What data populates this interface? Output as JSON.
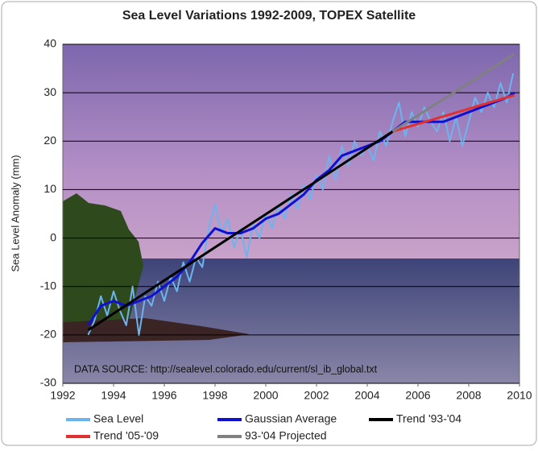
{
  "chart_data": {
    "type": "line",
    "title": "Sea Level Variations 1992-2009, TOPEX Satellite",
    "y_label": "Sea Level Anomaly (mm)",
    "annotation": "DATA SOURCE: http://sealevel.colorado.edu/current/sl_ib_global.txt",
    "xlim": [
      1992,
      2010
    ],
    "xticks": [
      1992,
      1994,
      1996,
      1998,
      2000,
      2002,
      2004,
      2006,
      2008,
      2010
    ],
    "ylim": [
      -30,
      40
    ],
    "yticks": [
      -30,
      -20,
      -10,
      0,
      10,
      20,
      30,
      40
    ],
    "grid": true,
    "legend": "bottom",
    "series": [
      {
        "name": "Sea Level",
        "color": "#6cb4f0",
        "width": 2,
        "x": [
          1993.0,
          1993.25,
          1993.5,
          1993.75,
          1994.0,
          1994.25,
          1994.5,
          1994.75,
          1995.0,
          1995.25,
          1995.5,
          1995.75,
          1996.0,
          1996.25,
          1996.5,
          1996.75,
          1997.0,
          1997.25,
          1997.5,
          1997.75,
          1998.0,
          1998.25,
          1998.5,
          1998.75,
          1999.0,
          1999.25,
          1999.5,
          1999.75,
          2000.0,
          2000.25,
          2000.5,
          2000.75,
          2001.0,
          2001.25,
          2001.5,
          2001.75,
          2002.0,
          2002.25,
          2002.5,
          2002.75,
          2003.0,
          2003.25,
          2003.5,
          2003.75,
          2004.0,
          2004.25,
          2004.5,
          2004.75,
          2005.0,
          2005.25,
          2005.5,
          2005.75,
          2006.0,
          2006.25,
          2006.5,
          2006.75,
          2007.0,
          2007.25,
          2007.5,
          2007.75,
          2008.0,
          2008.25,
          2008.5,
          2008.75,
          2009.0,
          2009.25,
          2009.5,
          2009.75
        ],
        "values": [
          -20,
          -17,
          -12,
          -16,
          -11,
          -15,
          -18,
          -10,
          -20,
          -12,
          -14,
          -9,
          -13,
          -8,
          -11,
          -5,
          -9,
          -4,
          -6,
          2,
          7,
          1,
          4,
          -2,
          2,
          -4,
          3,
          0,
          5,
          2,
          7,
          4,
          9,
          6,
          11,
          8,
          13,
          10,
          17,
          12,
          19,
          15,
          20,
          17,
          19,
          16,
          22,
          19,
          24,
          28,
          21,
          26,
          23,
          27,
          24,
          22,
          26,
          20,
          25,
          19,
          24,
          29,
          26,
          30,
          27,
          32,
          28,
          34
        ]
      },
      {
        "name": "Gaussian Average",
        "color": "#1010d0",
        "width": 3,
        "x": [
          1993,
          1993.5,
          1994,
          1994.5,
          1995,
          1995.5,
          1996,
          1996.5,
          1997,
          1997.5,
          1998,
          1998.5,
          1999,
          1999.5,
          2000,
          2000.5,
          2001,
          2001.5,
          2002,
          2002.5,
          2003,
          2003.5,
          2004,
          2004.5,
          2005,
          2005.5,
          2006,
          2006.5,
          2007,
          2007.5,
          2008,
          2008.5,
          2009,
          2009.5,
          2009.8
        ],
        "values": [
          -18,
          -14,
          -13,
          -14,
          -13,
          -12,
          -10,
          -8,
          -5,
          -1,
          2,
          1,
          1,
          2,
          4,
          5,
          7,
          9,
          12,
          14,
          17,
          18,
          19,
          20,
          22,
          24,
          24,
          24,
          24,
          25,
          26,
          27,
          28,
          29,
          30
        ]
      },
      {
        "name": "Trend '93-'04",
        "color": "#000000",
        "width": 3,
        "x": [
          1993,
          2005
        ],
        "values": [
          -19,
          22
        ]
      },
      {
        "name": "Trend '05-'09",
        "color": "#e03030",
        "width": 3,
        "x": [
          2005,
          2009.8
        ],
        "values": [
          22,
          29.5
        ]
      },
      {
        "name": "93-'04 Projected",
        "color": "#808080",
        "width": 3,
        "x": [
          2005,
          2009.8
        ],
        "values": [
          22,
          38
        ]
      }
    ]
  }
}
